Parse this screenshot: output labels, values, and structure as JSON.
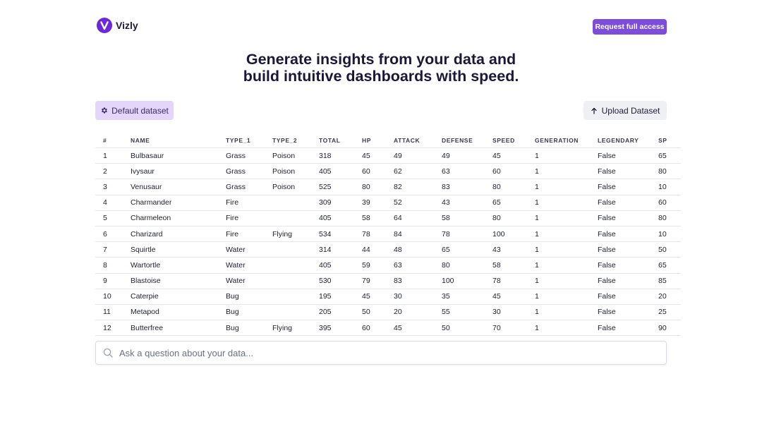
{
  "brand": {
    "name": "Vizly",
    "colors": {
      "primary": "#6d28d9",
      "accent": "#7c4ddb"
    }
  },
  "header": {
    "access_button": "Request full access"
  },
  "hero": {
    "line1": "Generate insights from your data and",
    "line2": "build intuitive dashboards with speed."
  },
  "toolbar": {
    "default_dataset": "Default dataset",
    "default_icon": "gear-icon",
    "upload_dataset": "Upload Dataset",
    "upload_icon": "arrow-up-icon"
  },
  "table": {
    "columns": [
      "#",
      "NAME",
      "TYPE_1",
      "TYPE_2",
      "TOTAL",
      "HP",
      "ATTACK",
      "DEFENSE",
      "SPEED",
      "GENERATION",
      "LEGENDARY",
      "SP"
    ],
    "rows": [
      [
        "1",
        "Bulbasaur",
        "Grass",
        "Poison",
        "318",
        "45",
        "49",
        "49",
        "45",
        "1",
        "False",
        "65"
      ],
      [
        "2",
        "Ivysaur",
        "Grass",
        "Poison",
        "405",
        "60",
        "62",
        "63",
        "60",
        "1",
        "False",
        "80"
      ],
      [
        "3",
        "Venusaur",
        "Grass",
        "Poison",
        "525",
        "80",
        "82",
        "83",
        "80",
        "1",
        "False",
        "10"
      ],
      [
        "4",
        "Charmander",
        "Fire",
        "",
        "309",
        "39",
        "52",
        "43",
        "65",
        "1",
        "False",
        "60"
      ],
      [
        "5",
        "Charmeleon",
        "Fire",
        "",
        "405",
        "58",
        "64",
        "58",
        "80",
        "1",
        "False",
        "80"
      ],
      [
        "6",
        "Charizard",
        "Fire",
        "Flying",
        "534",
        "78",
        "84",
        "78",
        "100",
        "1",
        "False",
        "10"
      ],
      [
        "7",
        "Squirtle",
        "Water",
        "",
        "314",
        "44",
        "48",
        "65",
        "43",
        "1",
        "False",
        "50"
      ],
      [
        "8",
        "Wartortle",
        "Water",
        "",
        "405",
        "59",
        "63",
        "80",
        "58",
        "1",
        "False",
        "65"
      ],
      [
        "9",
        "Blastoise",
        "Water",
        "",
        "530",
        "79",
        "83",
        "100",
        "78",
        "1",
        "False",
        "85"
      ],
      [
        "10",
        "Caterpie",
        "Bug",
        "",
        "195",
        "45",
        "30",
        "35",
        "45",
        "1",
        "False",
        "20"
      ],
      [
        "11",
        "Metapod",
        "Bug",
        "",
        "205",
        "50",
        "20",
        "55",
        "30",
        "1",
        "False",
        "25"
      ],
      [
        "12",
        "Butterfree",
        "Bug",
        "Flying",
        "395",
        "60",
        "45",
        "50",
        "70",
        "1",
        "False",
        "90"
      ]
    ]
  },
  "search": {
    "placeholder": "Ask a question about your data...",
    "value": "",
    "icon": "search-icon"
  }
}
